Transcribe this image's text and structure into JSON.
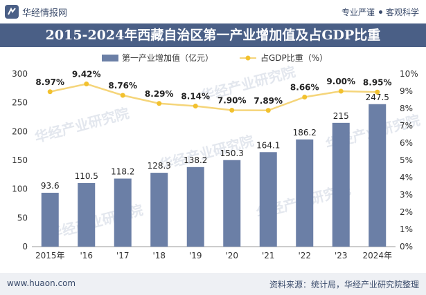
{
  "header": {
    "brand": "华经情报网",
    "tag1": "专业严谨",
    "tag2": "客观科学"
  },
  "colors": {
    "title_bg": "#4a5f86",
    "bar": "#6b7fa6",
    "line": "#f5d57a",
    "marker": "#f2c12e"
  },
  "footer": {
    "site": "www.huaon.com",
    "source": "资料来源：统计局，华经产业研究院整理"
  },
  "watermark": "华经产业研究院",
  "chart_data": {
    "type": "bar",
    "title": "2015-2024年西藏自治区第一产业增加值及占GDP比重",
    "categories": [
      "2015年",
      "'16",
      "'17",
      "'18",
      "'19",
      "'20",
      "'21",
      "'22",
      "'23",
      "2024年"
    ],
    "series": [
      {
        "name": "第一产业增加值（亿元）",
        "type": "bar",
        "axis": "left",
        "values": [
          93.6,
          110.5,
          118.2,
          128.3,
          138.2,
          150.3,
          164.1,
          186.2,
          215,
          247.5
        ],
        "labels": [
          "93.6",
          "110.5",
          "118.2",
          "128.3",
          "138.2",
          "150.3",
          "164.1",
          "186.2",
          "215",
          "247.5"
        ]
      },
      {
        "name": "占GDP比重（%）",
        "type": "line",
        "axis": "right",
        "values": [
          8.97,
          9.42,
          8.76,
          8.29,
          8.14,
          7.9,
          7.89,
          8.66,
          9.0,
          8.95
        ],
        "labels": [
          "8.97%",
          "9.42%",
          "8.76%",
          "8.29%",
          "8.14%",
          "7.90%",
          "7.89%",
          "8.66%",
          "9.00%",
          "8.95%"
        ]
      }
    ],
    "y_left": {
      "min": 0,
      "max": 300,
      "ticks": [
        0,
        50,
        100,
        150,
        200,
        250,
        300
      ]
    },
    "y_right": {
      "min": 0,
      "max": 10,
      "ticks": [
        "0%",
        "1%",
        "2%",
        "3%",
        "4%",
        "5%",
        "6%",
        "7%",
        "8%",
        "9%",
        "10%"
      ]
    },
    "legend_position": "top-center",
    "grid": false
  }
}
